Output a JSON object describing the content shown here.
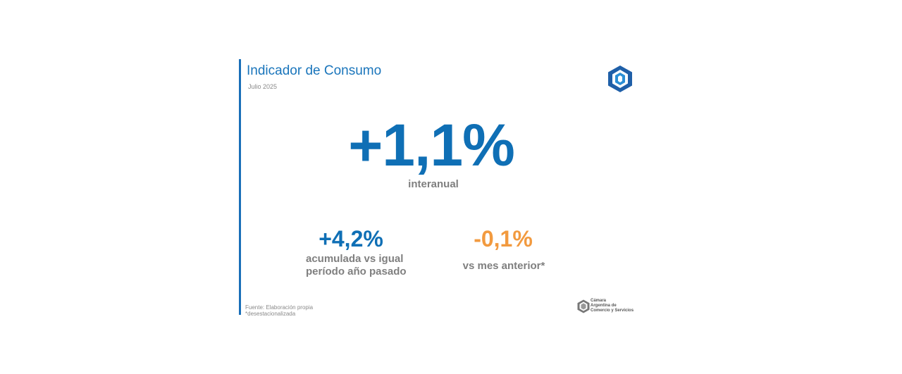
{
  "header": {
    "title": "Indicador de Consumo",
    "subtitle": "Julio 2025"
  },
  "main": {
    "value": "+1,1%",
    "label": "interanual"
  },
  "metrics": [
    {
      "value": "+4,2%",
      "label_lines": [
        "acumulada vs igual",
        "período año pasado"
      ]
    },
    {
      "value": "-0,1%",
      "label_lines": [
        "vs mes anterior*"
      ]
    }
  ],
  "footer": {
    "source": "Fuente: Elaboración propia",
    "note": "*desestacionalizada"
  },
  "logo": {
    "lines": [
      "Cámara",
      "Argentina de",
      "Comercio y Servicios"
    ]
  }
}
